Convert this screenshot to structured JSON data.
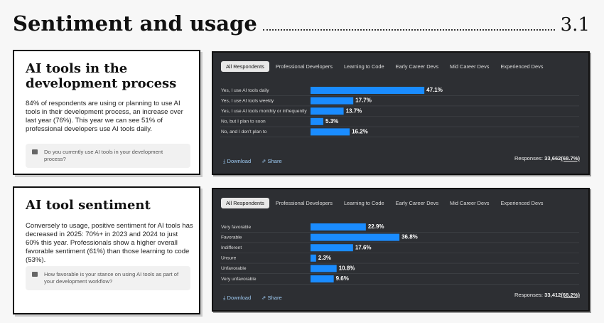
{
  "header": {
    "title": "Sentiment and usage",
    "number": "3.1"
  },
  "sections": [
    {
      "title": "AI tools in the development process",
      "text": "84% of respondents are using or planning to use AI tools in their development process, an increase over last year (76%). This year we can see 51% of professional developers use AI tools daily.",
      "question": "Do you currently use AI tools in your development process?",
      "tabs": [
        "All Respondents",
        "Professional Developers",
        "Learning to Code",
        "Early Career Devs",
        "Mid Career Devs",
        "Experienced Devs"
      ],
      "download": "Download",
      "share": "Share",
      "responses_label": "Responses:",
      "responses": "33,662",
      "responses_pct": "(68.7%)"
    },
    {
      "title": "AI tool sentiment",
      "text": "Conversely to usage, positive sentiment for AI tools has decreased in 2025: 70%+ in 2023 and 2024 to just 60% this year. Professionals show a higher overall favorable sentiment (61%) than those learning to code (53%).",
      "question": "How favorable is your stance on using AI tools as part of your development workflow?",
      "tabs": [
        "All Respondents",
        "Professional Developers",
        "Learning to Code",
        "Early Career Devs",
        "Mid Career Devs",
        "Experienced Devs"
      ],
      "download": "Download",
      "share": "Share",
      "responses_label": "Responses:",
      "responses": "33,412",
      "responses_pct": "(68.2%)"
    }
  ],
  "chart_data": [
    {
      "type": "bar",
      "orientation": "horizontal",
      "color": "#1a8cff",
      "categories": [
        "Yes, I use AI tools daily",
        "Yes, I use AI tools weekly",
        "Yes, I use AI tools monthly or infrequently",
        "No, but I plan to soon",
        "No, and I don't plan to"
      ],
      "values": [
        47.1,
        17.7,
        13.7,
        5.3,
        16.2
      ],
      "value_labels": [
        "47.1%",
        "17.7%",
        "13.7%",
        "5.3%",
        "16.2%"
      ],
      "xlim": [
        0,
        100
      ]
    },
    {
      "type": "bar",
      "orientation": "horizontal",
      "color": "#1a8cff",
      "categories": [
        "Very favorable",
        "Favorable",
        "Indifferent",
        "Unsure",
        "Unfavorable",
        "Very unfavorable"
      ],
      "values": [
        22.9,
        36.8,
        17.6,
        2.3,
        10.8,
        9.6
      ],
      "value_labels": [
        "22.9%",
        "36.8%",
        "17.6%",
        "2.3%",
        "10.8%",
        "9.6%"
      ],
      "xlim": [
        0,
        100
      ]
    }
  ]
}
